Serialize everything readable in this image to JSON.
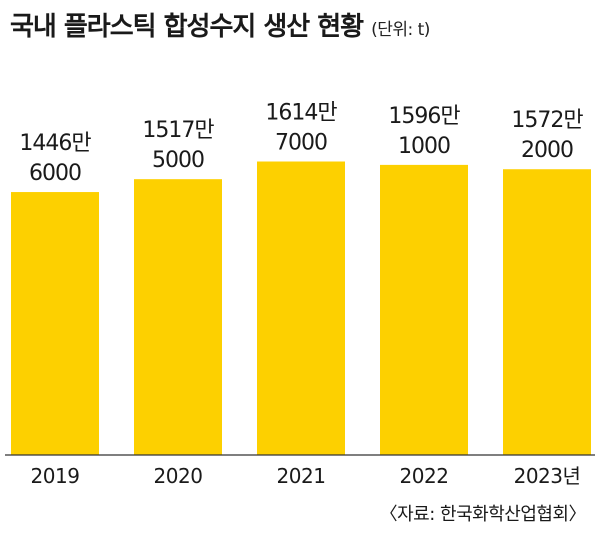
{
  "header": {
    "title": "국내 플라스틱 합성수지 생산 현황",
    "unit": "(단위: t)"
  },
  "footer": {
    "source": "〈자료: 한국화학산업협회〉"
  },
  "colors": {
    "bar": "#FDD000",
    "baseline": "#333333",
    "text": "#1a1a1a"
  },
  "chart_data": {
    "type": "bar",
    "categories": [
      "2019",
      "2020",
      "2021",
      "2022",
      "2023년"
    ],
    "values": [
      14466000,
      15175000,
      16147000,
      15961000,
      15722000
    ],
    "data_labels": [
      [
        "1446만",
        "6000"
      ],
      [
        "1517만",
        "5000"
      ],
      [
        "1614만",
        "7000"
      ],
      [
        "1596만",
        "1000"
      ],
      [
        "1572만",
        "2000"
      ]
    ],
    "title": "국내 플라스틱 합성수지 생산 현황",
    "unit": "t",
    "ylim": [
      0,
      17000000
    ],
    "grid": false,
    "legend": "none"
  }
}
